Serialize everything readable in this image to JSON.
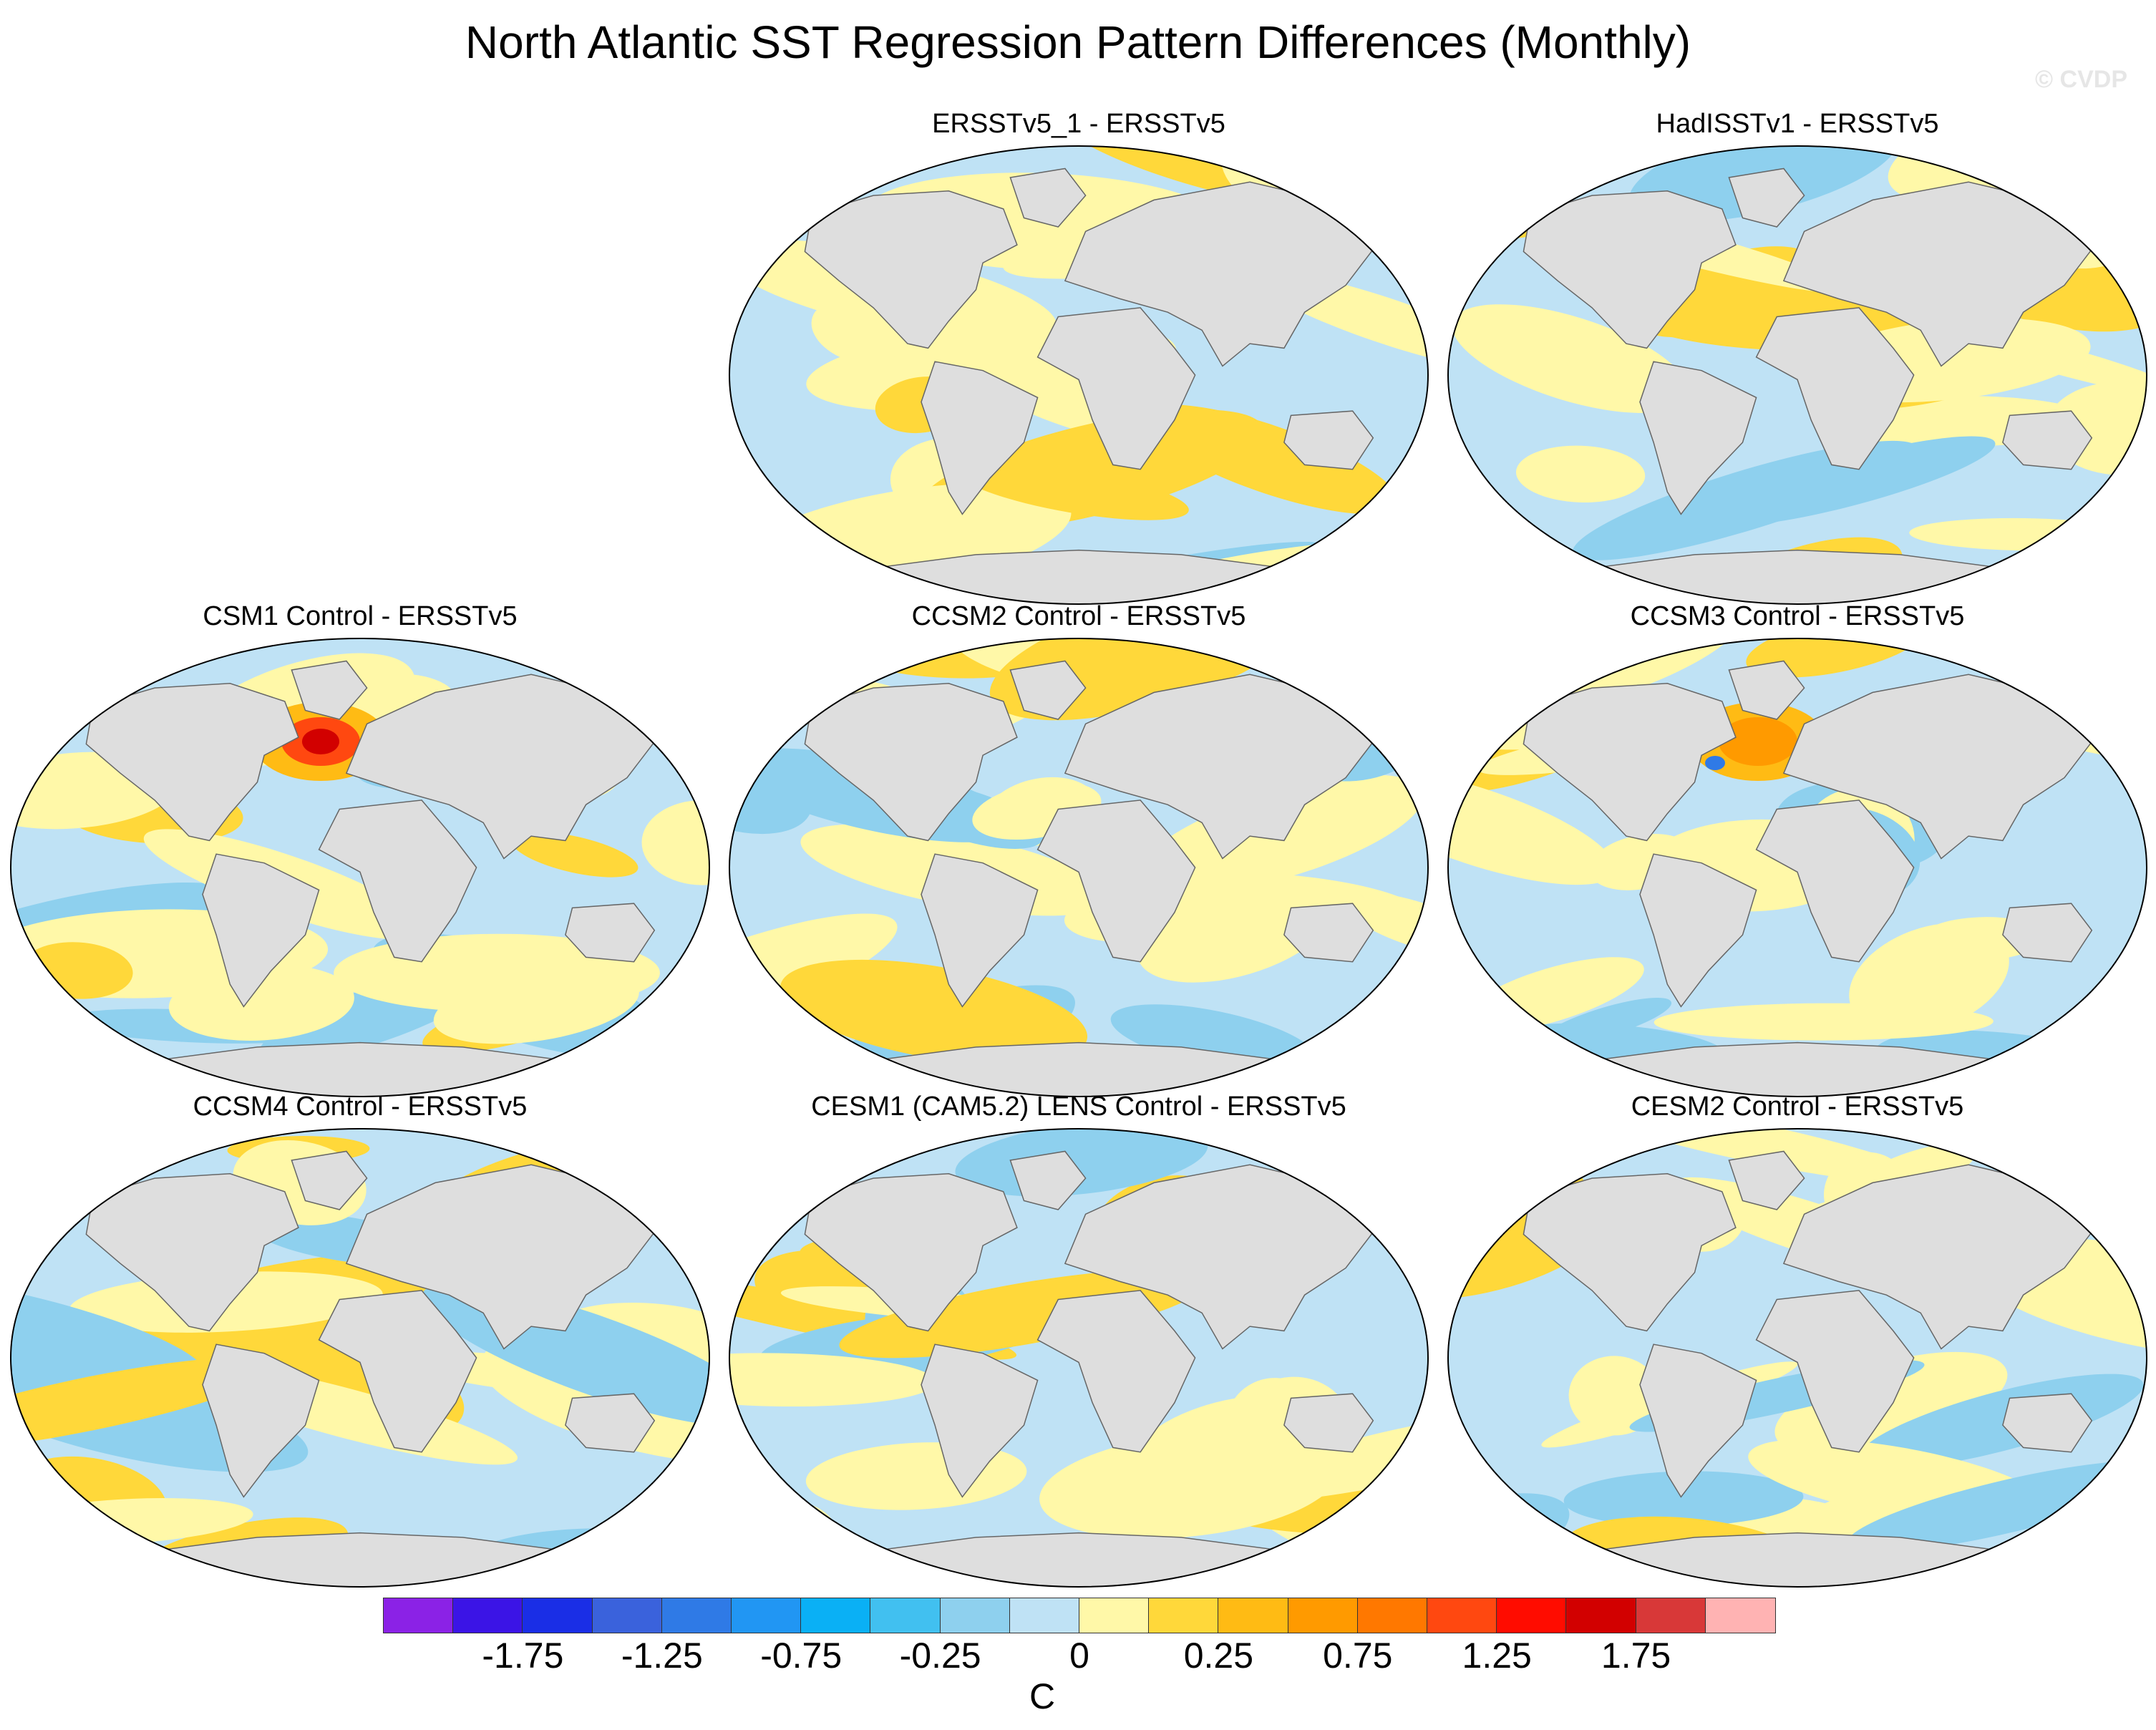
{
  "title": "North Atlantic SST Regression Pattern Differences (Monthly)",
  "credit": "© CVDP",
  "panels": [
    {
      "id": "ersstv5_1",
      "title": "ERSSTv5_1 - ERSSTv5",
      "variant": 0,
      "hot": null
    },
    {
      "id": "hadisstv1",
      "title": "HadISSTv1 - ERSSTv5",
      "variant": 1,
      "hot": null
    },
    {
      "id": "csm1",
      "title": "CSM1 Control - ERSSTv5",
      "variant": 2,
      "hot": "red"
    },
    {
      "id": "ccsm2",
      "title": "CCSM2 Control - ERSSTv5",
      "variant": 3,
      "hot": null
    },
    {
      "id": "ccsm3",
      "title": "CCSM3 Control - ERSSTv5",
      "variant": 4,
      "hot": "orange"
    },
    {
      "id": "ccsm4",
      "title": "CCSM4 Control - ERSSTv5",
      "variant": 5,
      "hot": null
    },
    {
      "id": "cesm1",
      "title": "CESM1 (CAM5.2) LENS Control - ERSSTv5",
      "variant": 6,
      "hot": null
    },
    {
      "id": "cesm2",
      "title": "CESM2 Control - ERSSTv5",
      "variant": 7,
      "hot": null
    }
  ],
  "colorbar": {
    "colors": [
      "#8b22e6",
      "#3b14e6",
      "#1a2ee6",
      "#3a62dc",
      "#2f7ae6",
      "#2196f3",
      "#0ab0f5",
      "#41c0f0",
      "#8ed0ee",
      "#bfe2f5",
      "#fff8a8",
      "#ffd83a",
      "#ffbb14",
      "#ff9a00",
      "#ff7800",
      "#ff4810",
      "#ff0c00",
      "#d20000",
      "#d83838",
      "#ffb3b3"
    ],
    "labels": [
      "-1.75",
      "-1.25",
      "-0.75",
      "-0.25",
      "0",
      "0.25",
      "0.75",
      "1.25",
      "1.75"
    ],
    "unit": "C"
  },
  "legend_colors": {
    "land": "#dedede",
    "ocean_near_zero_negative": "#bfe2f5",
    "ocean_near_zero_positive": "#fff8a8",
    "moderate_positive": "#ffd83a",
    "moderate_negative": "#8ed0ee"
  }
}
